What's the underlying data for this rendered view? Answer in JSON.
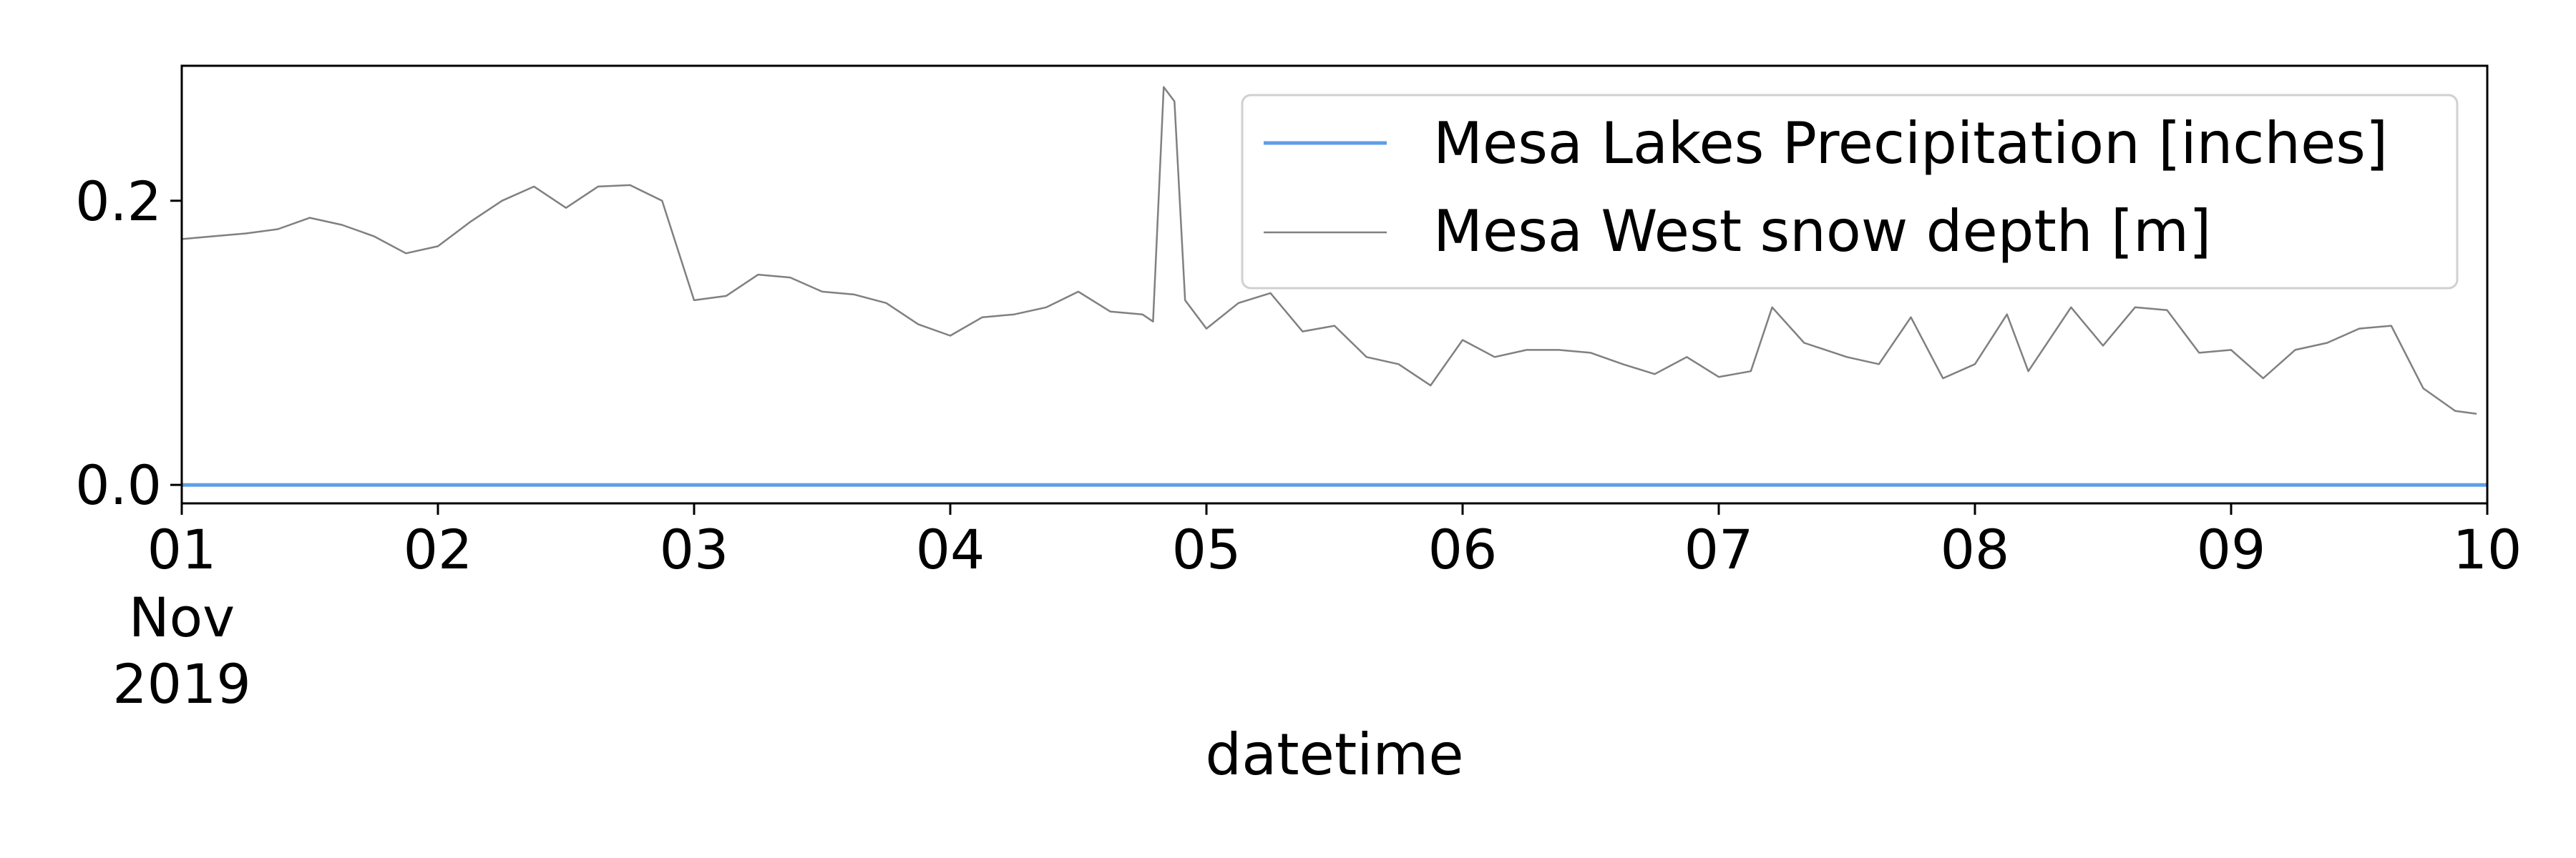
{
  "chart_data": {
    "type": "line",
    "xlabel": "datetime",
    "ylabel": "",
    "x_range": [
      "2019-11-01",
      "2019-11-10"
    ],
    "ylim": [
      -0.013,
      0.295
    ],
    "y_ticks": [
      0.0,
      0.2
    ],
    "y_tick_labels": [
      "0.0",
      "0.2"
    ],
    "x_ticks": [
      "2019-11-01",
      "2019-11-02",
      "2019-11-03",
      "2019-11-04",
      "2019-11-05",
      "2019-11-06",
      "2019-11-07",
      "2019-11-08",
      "2019-11-09",
      "2019-11-10"
    ],
    "x_tick_labels": [
      "01",
      "02",
      "03",
      "04",
      "05",
      "06",
      "07",
      "08",
      "09",
      "10"
    ],
    "x_tick_sublabels": [
      "Nov",
      "2019"
    ],
    "grid": false,
    "legend_position": "top-right",
    "series": [
      {
        "name": "Mesa Lakes Precipitation [inches]",
        "color": "#5f9ee6",
        "x": [
          "2019-11-01T00:00",
          "2019-11-10T00:00"
        ],
        "y": [
          0.0,
          0.0
        ]
      },
      {
        "name": "Mesa West snow depth [m]",
        "color": "#808080",
        "x": [
          "2019-11-01T00:00",
          "2019-11-01T03:00",
          "2019-11-01T06:00",
          "2019-11-01T09:00",
          "2019-11-01T12:00",
          "2019-11-01T15:00",
          "2019-11-01T18:00",
          "2019-11-01T21:00",
          "2019-11-02T00:00",
          "2019-11-02T03:00",
          "2019-11-02T06:00",
          "2019-11-02T09:00",
          "2019-11-02T12:00",
          "2019-11-02T15:00",
          "2019-11-02T18:00",
          "2019-11-02T21:00",
          "2019-11-03T00:00",
          "2019-11-03T03:00",
          "2019-11-03T06:00",
          "2019-11-03T09:00",
          "2019-11-03T12:00",
          "2019-11-03T15:00",
          "2019-11-03T18:00",
          "2019-11-03T21:00",
          "2019-11-04T00:00",
          "2019-11-04T03:00",
          "2019-11-04T06:00",
          "2019-11-04T09:00",
          "2019-11-04T12:00",
          "2019-11-04T15:00",
          "2019-11-04T18:00",
          "2019-11-04T19:00",
          "2019-11-04T20:00",
          "2019-11-04T21:00",
          "2019-11-04T22:00",
          "2019-11-05T00:00",
          "2019-11-05T03:00",
          "2019-11-05T06:00",
          "2019-11-05T09:00",
          "2019-11-05T12:00",
          "2019-11-05T15:00",
          "2019-11-05T18:00",
          "2019-11-05T21:00",
          "2019-11-06T00:00",
          "2019-11-06T03:00",
          "2019-11-06T06:00",
          "2019-11-06T09:00",
          "2019-11-06T12:00",
          "2019-11-06T15:00",
          "2019-11-06T18:00",
          "2019-11-06T21:00",
          "2019-11-07T00:00",
          "2019-11-07T03:00",
          "2019-11-07T05:00",
          "2019-11-07T08:00",
          "2019-11-07T12:00",
          "2019-11-07T15:00",
          "2019-11-07T18:00",
          "2019-11-07T21:00",
          "2019-11-08T00:00",
          "2019-11-08T03:00",
          "2019-11-08T05:00",
          "2019-11-08T09:00",
          "2019-11-08T12:00",
          "2019-11-08T15:00",
          "2019-11-08T18:00",
          "2019-11-08T21:00",
          "2019-11-09T00:00",
          "2019-11-09T03:00",
          "2019-11-09T06:00",
          "2019-11-09T09:00",
          "2019-11-09T12:00",
          "2019-11-09T15:00",
          "2019-11-09T18:00",
          "2019-11-09T21:00",
          "2019-11-09T23:00"
        ],
        "y": [
          0.173,
          0.175,
          0.177,
          0.18,
          0.188,
          0.183,
          0.175,
          0.163,
          0.168,
          0.185,
          0.2,
          0.21,
          0.195,
          0.21,
          0.211,
          0.2,
          0.13,
          0.133,
          0.148,
          0.146,
          0.136,
          0.134,
          0.128,
          0.113,
          0.105,
          0.118,
          0.12,
          0.125,
          0.136,
          0.122,
          0.12,
          0.115,
          0.28,
          0.27,
          0.13,
          0.11,
          0.128,
          0.135,
          0.108,
          0.112,
          0.09,
          0.085,
          0.07,
          0.102,
          0.09,
          0.095,
          0.095,
          0.093,
          0.085,
          0.078,
          0.09,
          0.076,
          0.08,
          0.125,
          0.1,
          0.09,
          0.085,
          0.118,
          0.075,
          0.085,
          0.12,
          0.08,
          0.125,
          0.098,
          0.125,
          0.123,
          0.093,
          0.095,
          0.075,
          0.095,
          0.1,
          0.11,
          0.112,
          0.068,
          0.052,
          0.05
        ]
      }
    ]
  }
}
